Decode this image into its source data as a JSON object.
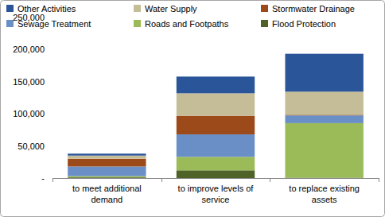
{
  "chart_data": {
    "type": "bar",
    "stacked": true,
    "legend": "top",
    "grid": false,
    "categories": [
      "to meet additional demand",
      "to improve levels of service",
      "to replace existing assets"
    ],
    "series": [
      {
        "name": "Flood Protection",
        "color": "#4f6228",
        "values": [
          1000,
          12000,
          500
        ]
      },
      {
        "name": "Roads and Footpaths",
        "color": "#9bbb59",
        "values": [
          2000,
          21000,
          85000
        ]
      },
      {
        "name": "Sewage Treatment",
        "color": "#6a8fc7",
        "values": [
          15000,
          35000,
          12000
        ]
      },
      {
        "name": "Stormwater Drainage",
        "color": "#9c4a1a",
        "values": [
          12000,
          29000,
          1000
        ]
      },
      {
        "name": "Water Supply",
        "color": "#c4bd97",
        "values": [
          5000,
          35000,
          36000
        ]
      },
      {
        "name": "Other Activities",
        "color": "#2a5599",
        "values": [
          3000,
          26000,
          59000
        ]
      }
    ],
    "ylim": [
      0,
      250000
    ],
    "yticks": [
      {
        "value": 0,
        "label": "-"
      },
      {
        "value": 50000,
        "label": "50,000"
      },
      {
        "value": 100000,
        "label": "100,000"
      },
      {
        "value": 150000,
        "label": "150,000"
      },
      {
        "value": 200000,
        "label": "200,000"
      },
      {
        "value": 250000,
        "label": "250,000"
      }
    ]
  }
}
